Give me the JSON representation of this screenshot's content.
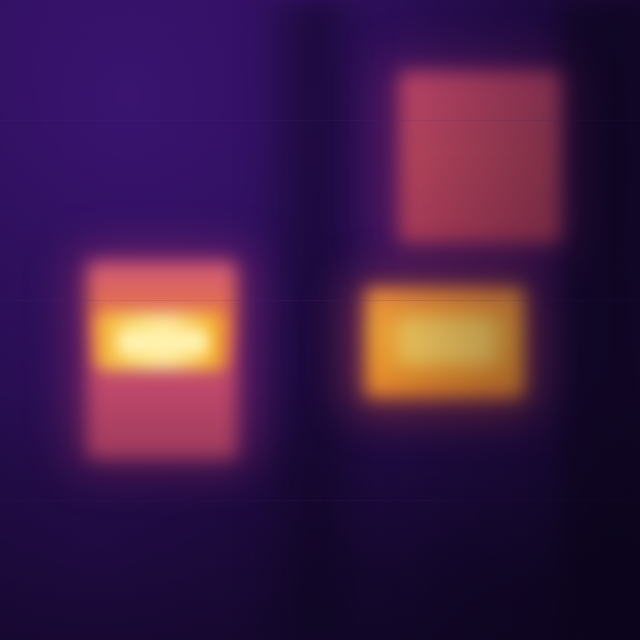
{
  "image": {
    "kind": "thermal-camera-frame",
    "palette": "inferno",
    "colors": {
      "background": "#1e0a42",
      "warm": "#c8486e",
      "hot": "#f7aa38",
      "hottest": "#fde898"
    },
    "objects": [
      {
        "name": "heat-patch-top-right",
        "intensity": "warm"
      },
      {
        "name": "heat-patch-left",
        "intensity": "hottest"
      },
      {
        "name": "heat-patch-middle-right",
        "intensity": "hot"
      }
    ]
  }
}
